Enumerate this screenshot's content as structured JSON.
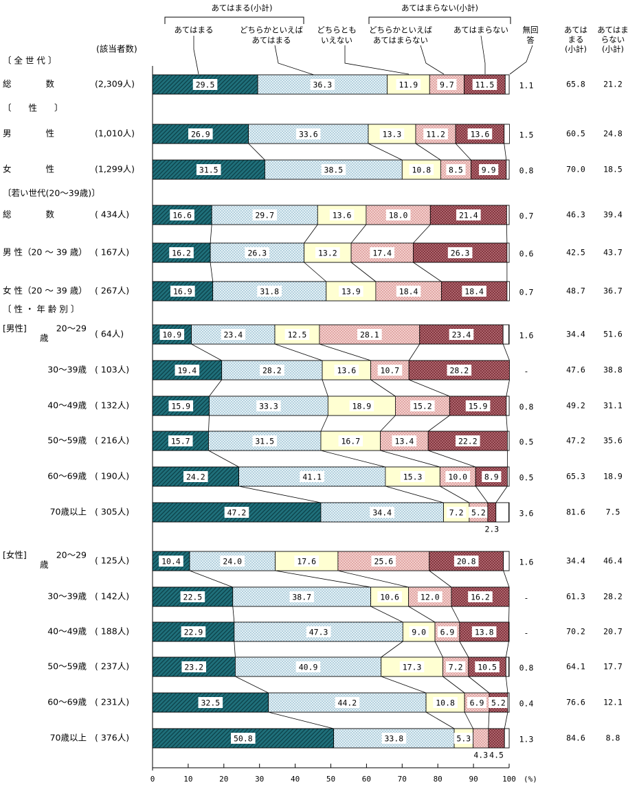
{
  "chart_data": {
    "type": "bar",
    "orientation": "horizontal",
    "stacked": "100%",
    "unit": "(%)",
    "xlim": [
      0,
      100
    ],
    "xticks": [
      "0",
      "10",
      "20",
      "30",
      "40",
      "50",
      "60",
      "70",
      "80",
      "90",
      "100"
    ],
    "count_header": "(該当者数)",
    "group_headers": {
      "agree_subtotal": "あてはまる(小計)",
      "disagree_subtotal": "あてはまらない(小計)"
    },
    "categories": [
      {
        "id": "agree",
        "lines": [
          "あてはまる"
        ]
      },
      {
        "id": "somewhat_agree",
        "lines": [
          "どちらかといえば",
          "あてはまる"
        ]
      },
      {
        "id": "neither",
        "lines": [
          "どちらとも",
          "いえない"
        ]
      },
      {
        "id": "somewhat_disagree",
        "lines": [
          "どちらかといえば",
          "あてはまらない"
        ]
      },
      {
        "id": "disagree",
        "lines": [
          "あてはまらない"
        ]
      },
      {
        "id": "no_answer",
        "lines": [
          "無回",
          "答"
        ]
      }
    ],
    "summary_headers": [
      [
        "あては",
        "まる",
        "(小計)"
      ],
      [
        "あてはま",
        "らない",
        "(小計)"
      ]
    ],
    "colors": [
      "#1f6f7a",
      "#dfeef3",
      "#ffffd2",
      "#f0c6c3",
      "#b0646a",
      "#ffffff"
    ],
    "sections": [
      {
        "title": "〔 全 世 代 〕",
        "rows": [
          {
            "label": "総　　　　数",
            "n": "(2,309人)",
            "values": [
              29.5,
              36.3,
              11.9,
              9.7,
              11.5,
              1.1
            ],
            "labels": [
              "29.5",
              "36.3",
              "11.9",
              "9.7",
              "11.5",
              "1.1"
            ],
            "sum_agree": "65.8",
            "sum_disagree": "21.2"
          }
        ]
      },
      {
        "title": "〔　　性　　〕",
        "rows": [
          {
            "label": "男　　　　性",
            "n": "(1,010人)",
            "values": [
              26.9,
              33.6,
              13.3,
              11.2,
              13.6,
              1.5
            ],
            "labels": [
              "26.9",
              "33.6",
              "13.3",
              "11.2",
              "13.6",
              "1.5"
            ],
            "sum_agree": "60.5",
            "sum_disagree": "24.8"
          },
          {
            "label": "女　　　　性",
            "n": "(1,299人)",
            "values": [
              31.5,
              38.5,
              10.8,
              8.5,
              9.9,
              0.8
            ],
            "labels": [
              "31.5",
              "38.5",
              "10.8",
              "8.5",
              "9.9",
              "0.8"
            ],
            "sum_agree": "70.0",
            "sum_disagree": "18.5"
          }
        ]
      },
      {
        "title": "〔若い世代(20～39歳)〕",
        "rows": [
          {
            "label": "総　　　　数",
            "n": "( 434人)",
            "values": [
              16.6,
              29.7,
              13.6,
              18.0,
              21.4,
              0.7
            ],
            "labels": [
              "16.6",
              "29.7",
              "13.6",
              "18.0",
              "21.4",
              "0.7"
            ],
            "sum_agree": "46.3",
            "sum_disagree": "39.4"
          },
          {
            "label": "男 性（20 ～ 39 歳）",
            "n": "( 167人)",
            "values": [
              16.2,
              26.3,
              13.2,
              17.4,
              26.3,
              0.6
            ],
            "labels": [
              "16.2",
              "26.3",
              "13.2",
              "17.4",
              "26.3",
              "0.6"
            ],
            "sum_agree": "42.5",
            "sum_disagree": "43.7"
          },
          {
            "label": "女 性（20 ～ 39 歳）",
            "n": "( 267人)",
            "values": [
              16.9,
              31.8,
              13.9,
              18.4,
              18.4,
              0.7
            ],
            "labels": [
              "16.9",
              "31.8",
              "13.9",
              "18.4",
              "18.4",
              "0.7"
            ],
            "sum_agree": "48.7",
            "sum_disagree": "36.7"
          }
        ]
      },
      {
        "title": "〔 性 ・ 年 齢 別 〕",
        "rows": [
          {
            "prefix": "[男性]",
            "label": "20～29歳",
            "n": "( 64人)",
            "values": [
              10.9,
              23.4,
              12.5,
              28.1,
              23.4,
              1.6
            ],
            "labels": [
              "10.9",
              "23.4",
              "12.5",
              "28.1",
              "23.4",
              "1.6"
            ],
            "sum_agree": "34.4",
            "sum_disagree": "51.6"
          },
          {
            "label": "30～39歳",
            "n": "( 103人)",
            "values": [
              19.4,
              28.2,
              13.6,
              10.7,
              28.2,
              0
            ],
            "labels": [
              "19.4",
              "28.2",
              "13.6",
              "10.7",
              "28.2",
              "-"
            ],
            "sum_agree": "47.6",
            "sum_disagree": "38.8"
          },
          {
            "label": "40～49歳",
            "n": "( 132人)",
            "values": [
              15.9,
              33.3,
              18.9,
              15.2,
              15.9,
              0.8
            ],
            "labels": [
              "15.9",
              "33.3",
              "18.9",
              "15.2",
              "15.9",
              "0.8"
            ],
            "sum_agree": "49.2",
            "sum_disagree": "31.1"
          },
          {
            "label": "50～59歳",
            "n": "( 216人)",
            "values": [
              15.7,
              31.5,
              16.7,
              13.4,
              22.2,
              0.5
            ],
            "labels": [
              "15.7",
              "31.5",
              "16.7",
              "13.4",
              "22.2",
              "0.5"
            ],
            "sum_agree": "47.2",
            "sum_disagree": "35.6"
          },
          {
            "label": "60～69歳",
            "n": "( 190人)",
            "values": [
              24.2,
              41.1,
              15.3,
              10.0,
              8.9,
              0.5
            ],
            "labels": [
              "24.2",
              "41.1",
              "15.3",
              "10.0",
              "8.9",
              "0.5"
            ],
            "sum_agree": "65.3",
            "sum_disagree": "18.9"
          },
          {
            "label": "70歳以上",
            "n": "( 305人)",
            "values": [
              47.2,
              34.4,
              7.2,
              5.2,
              2.3,
              3.6
            ],
            "labels": [
              "47.2",
              "34.4",
              "7.2",
              "5.2",
              "2.3",
              "3.6"
            ],
            "sum_agree": "81.6",
            "sum_disagree": "7.5"
          }
        ]
      },
      {
        "rows": [
          {
            "prefix": "[女性]",
            "label": "20～29歳",
            "n": "( 125人)",
            "values": [
              10.4,
              24.0,
              17.6,
              25.6,
              20.8,
              1.6
            ],
            "labels": [
              "10.4",
              "24.0",
              "17.6",
              "25.6",
              "20.8",
              "1.6"
            ],
            "sum_agree": "34.4",
            "sum_disagree": "46.4"
          },
          {
            "label": "30～39歳",
            "n": "( 142人)",
            "values": [
              22.5,
              38.7,
              10.6,
              12.0,
              16.2,
              0
            ],
            "labels": [
              "22.5",
              "38.7",
              "10.6",
              "12.0",
              "16.2",
              "-"
            ],
            "sum_agree": "61.3",
            "sum_disagree": "28.2"
          },
          {
            "label": "40～49歳",
            "n": "( 188人)",
            "values": [
              22.9,
              47.3,
              9.0,
              6.9,
              13.8,
              0
            ],
            "labels": [
              "22.9",
              "47.3",
              "9.0",
              "6.9",
              "13.8",
              "-"
            ],
            "sum_agree": "70.2",
            "sum_disagree": "20.7"
          },
          {
            "label": "50～59歳",
            "n": "( 237人)",
            "values": [
              23.2,
              40.9,
              17.3,
              7.2,
              10.5,
              0.8
            ],
            "labels": [
              "23.2",
              "40.9",
              "17.3",
              "7.2",
              "10.5",
              "0.8"
            ],
            "sum_agree": "64.1",
            "sum_disagree": "17.7"
          },
          {
            "label": "60～69歳",
            "n": "( 231人)",
            "values": [
              32.5,
              44.2,
              10.8,
              6.9,
              5.2,
              0.4
            ],
            "labels": [
              "32.5",
              "44.2",
              "10.8",
              "6.9",
              "5.2",
              "0.4"
            ],
            "sum_agree": "76.6",
            "sum_disagree": "12.1"
          },
          {
            "label": "70歳以上",
            "n": "( 376人)",
            "values": [
              50.8,
              33.8,
              5.3,
              4.3,
              4.5,
              1.3
            ],
            "labels": [
              "50.8",
              "33.8",
              "5.3",
              "4.3",
              "4.5",
              "1.3"
            ],
            "sum_agree": "84.6",
            "sum_disagree": "8.8"
          }
        ]
      }
    ]
  }
}
